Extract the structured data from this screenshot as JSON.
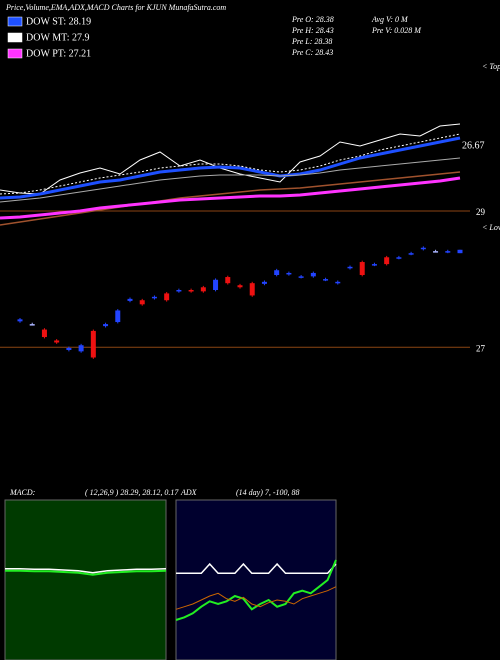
{
  "header": {
    "title": "Price,Volume,EMA,ADX,MACD Charts for KJUN  MunafaSutra.com"
  },
  "legend": [
    {
      "label": "DOW ST: 28.19",
      "color": "#1e50ff"
    },
    {
      "label": "DOW MT: 27.9",
      "color": "#ffffff"
    },
    {
      "label": "DOW PT: 27.21",
      "color": "#ff33ff"
    }
  ],
  "quote": {
    "left": [
      "Pre   O: 28.38",
      "Pre   H: 28.43",
      "Pre   L: 28.38",
      "Pre   C: 28.43"
    ],
    "right": [
      "Avg V: 0  M",
      "Pre   V: 0.028 M"
    ]
  },
  "chart_data": [
    {
      "type": "line",
      "labels": {
        "last": "26.67",
        "level": "29",
        "tag": "< Tops"
      },
      "series": [
        {
          "color": "#ffffff",
          "width": 1,
          "values": [
            40,
            37,
            36,
            50,
            57,
            62,
            56,
            70,
            78,
            64,
            70,
            62,
            56,
            52,
            48,
            68,
            74,
            88,
            84,
            90,
            96,
            94,
            104,
            106
          ]
        },
        {
          "color": "#1e50ff",
          "width": 3,
          "values": [
            32,
            33,
            36,
            40,
            44,
            48,
            50,
            54,
            58,
            60,
            62,
            63,
            62,
            58,
            54,
            56,
            60,
            66,
            72,
            76,
            80,
            84,
            88,
            92
          ]
        },
        {
          "color": "#ffffff",
          "width": 1,
          "style": "dotted",
          "values": [
            36,
            37,
            40,
            44,
            48,
            52,
            55,
            58,
            62,
            64,
            66,
            66,
            64,
            60,
            58,
            60,
            64,
            70,
            74,
            80,
            84,
            88,
            92,
            96
          ]
        },
        {
          "color": "#aaaaaa",
          "width": 1,
          "values": [
            28,
            30,
            32,
            35,
            38,
            41,
            44,
            47,
            50,
            52,
            54,
            55,
            55,
            55,
            54,
            55,
            57,
            60,
            62,
            64,
            66,
            68,
            70,
            72
          ]
        },
        {
          "color": "#a0522d",
          "width": 1.5,
          "values": [
            5,
            8,
            11,
            14,
            17,
            20,
            23,
            26,
            29,
            32,
            34,
            36,
            38,
            40,
            41,
            42,
            44,
            46,
            48,
            50,
            52,
            54,
            56,
            58
          ]
        },
        {
          "color": "#ff33ff",
          "width": 3,
          "values": [
            12,
            13,
            15,
            17,
            19,
            22,
            24,
            26,
            28,
            30,
            31,
            32,
            33,
            34,
            34,
            35,
            37,
            39,
            41,
            43,
            45,
            47,
            49,
            52
          ]
        }
      ]
    },
    {
      "type": "candlestick",
      "tag": "< Lows",
      "up_color": "#2244ff",
      "down_color": "#ee1111",
      "flat_color": "#aab4ff",
      "ylim": [
        26.74,
        28.72
      ],
      "yticks": [
        {
          "value": 27,
          "label": "27"
        }
      ],
      "open": [
        27.38,
        27.34,
        27.26,
        27.1,
        26.96,
        26.94,
        27.24,
        27.31,
        27.37,
        27.68,
        27.69,
        27.72,
        27.79,
        27.82,
        27.84,
        27.88,
        27.84,
        28.03,
        27.91,
        27.94,
        27.93,
        28.06,
        28.07,
        28.03,
        28.04,
        27.99,
        27.94,
        28.16,
        28.25,
        28.21,
        28.32,
        28.31,
        28.37,
        28.44,
        28.41,
        28.4,
        28.38
      ],
      "close": [
        27.41,
        27.34,
        27.15,
        27.07,
        26.99,
        27.03,
        26.85,
        27.34,
        27.54,
        27.71,
        27.63,
        27.74,
        27.69,
        27.84,
        27.82,
        27.82,
        27.99,
        27.94,
        27.88,
        27.76,
        27.96,
        28.13,
        28.09,
        28.04,
        28.09,
        28.0,
        27.96,
        28.18,
        28.06,
        28.22,
        28.22,
        28.32,
        28.38,
        28.46,
        28.41,
        28.41,
        28.43
      ],
      "high": [
        27.43,
        27.36,
        27.28,
        27.12,
        27.01,
        27.05,
        27.26,
        27.36,
        27.56,
        27.73,
        27.71,
        27.76,
        27.81,
        27.86,
        27.86,
        27.9,
        28.01,
        28.05,
        27.93,
        27.96,
        27.98,
        28.15,
        28.11,
        28.06,
        28.11,
        28.02,
        27.98,
        28.2,
        28.27,
        28.24,
        28.34,
        28.34,
        28.4,
        28.48,
        28.43,
        28.43,
        28.43
      ],
      "low": [
        27.36,
        27.32,
        27.13,
        27.05,
        26.94,
        26.92,
        26.83,
        27.29,
        27.35,
        27.66,
        27.61,
        27.7,
        27.67,
        27.8,
        27.8,
        27.8,
        27.82,
        27.92,
        27.86,
        27.74,
        27.91,
        28.04,
        28.05,
        28.01,
        28.02,
        27.97,
        27.92,
        28.14,
        28.04,
        28.19,
        28.2,
        28.29,
        28.35,
        28.42,
        28.39,
        28.38,
        28.38
      ]
    },
    {
      "type": "line",
      "title": "MACD:",
      "subtitle": "( 12,26,9 ) 28.29, 28.12, 0.17",
      "background": "#003a00",
      "ylim": [
        -1.2,
        1.2
      ],
      "series": [
        {
          "color": "#ffffff",
          "width": 1.5,
          "values": [
            0.17,
            0.17,
            0.16,
            0.16,
            0.15,
            0.14,
            0.11,
            0.14,
            0.15,
            0.16,
            0.16,
            0.17
          ]
        },
        {
          "color": "#22ee22",
          "width": 2,
          "values": [
            0.14,
            0.14,
            0.13,
            0.13,
            0.12,
            0.11,
            0.08,
            0.11,
            0.12,
            0.13,
            0.13,
            0.14
          ]
        }
      ]
    },
    {
      "type": "line",
      "title": "ADX",
      "subtitle": "(14 day) 7, -100, 88",
      "background": "#00002e",
      "ylim": [
        -20,
        100
      ],
      "series": [
        {
          "color": "#ffffff",
          "width": 1.5,
          "values": [
            45,
            45,
            45,
            45,
            52,
            45,
            45,
            45,
            52,
            45,
            45,
            45,
            52,
            45,
            45,
            45,
            45,
            45,
            45,
            52
          ]
        },
        {
          "color": "#22ee22",
          "width": 2,
          "values": [
            10,
            12,
            15,
            20,
            24,
            22,
            24,
            28,
            26,
            18,
            22,
            25,
            20,
            22,
            30,
            32,
            30,
            35,
            40,
            55
          ]
        },
        {
          "color": "#cc6600",
          "width": 1,
          "values": [
            18,
            20,
            22,
            25,
            28,
            30,
            26,
            24,
            27,
            22,
            20,
            23,
            25,
            24,
            22,
            26,
            28,
            30,
            32,
            35
          ]
        }
      ]
    }
  ]
}
